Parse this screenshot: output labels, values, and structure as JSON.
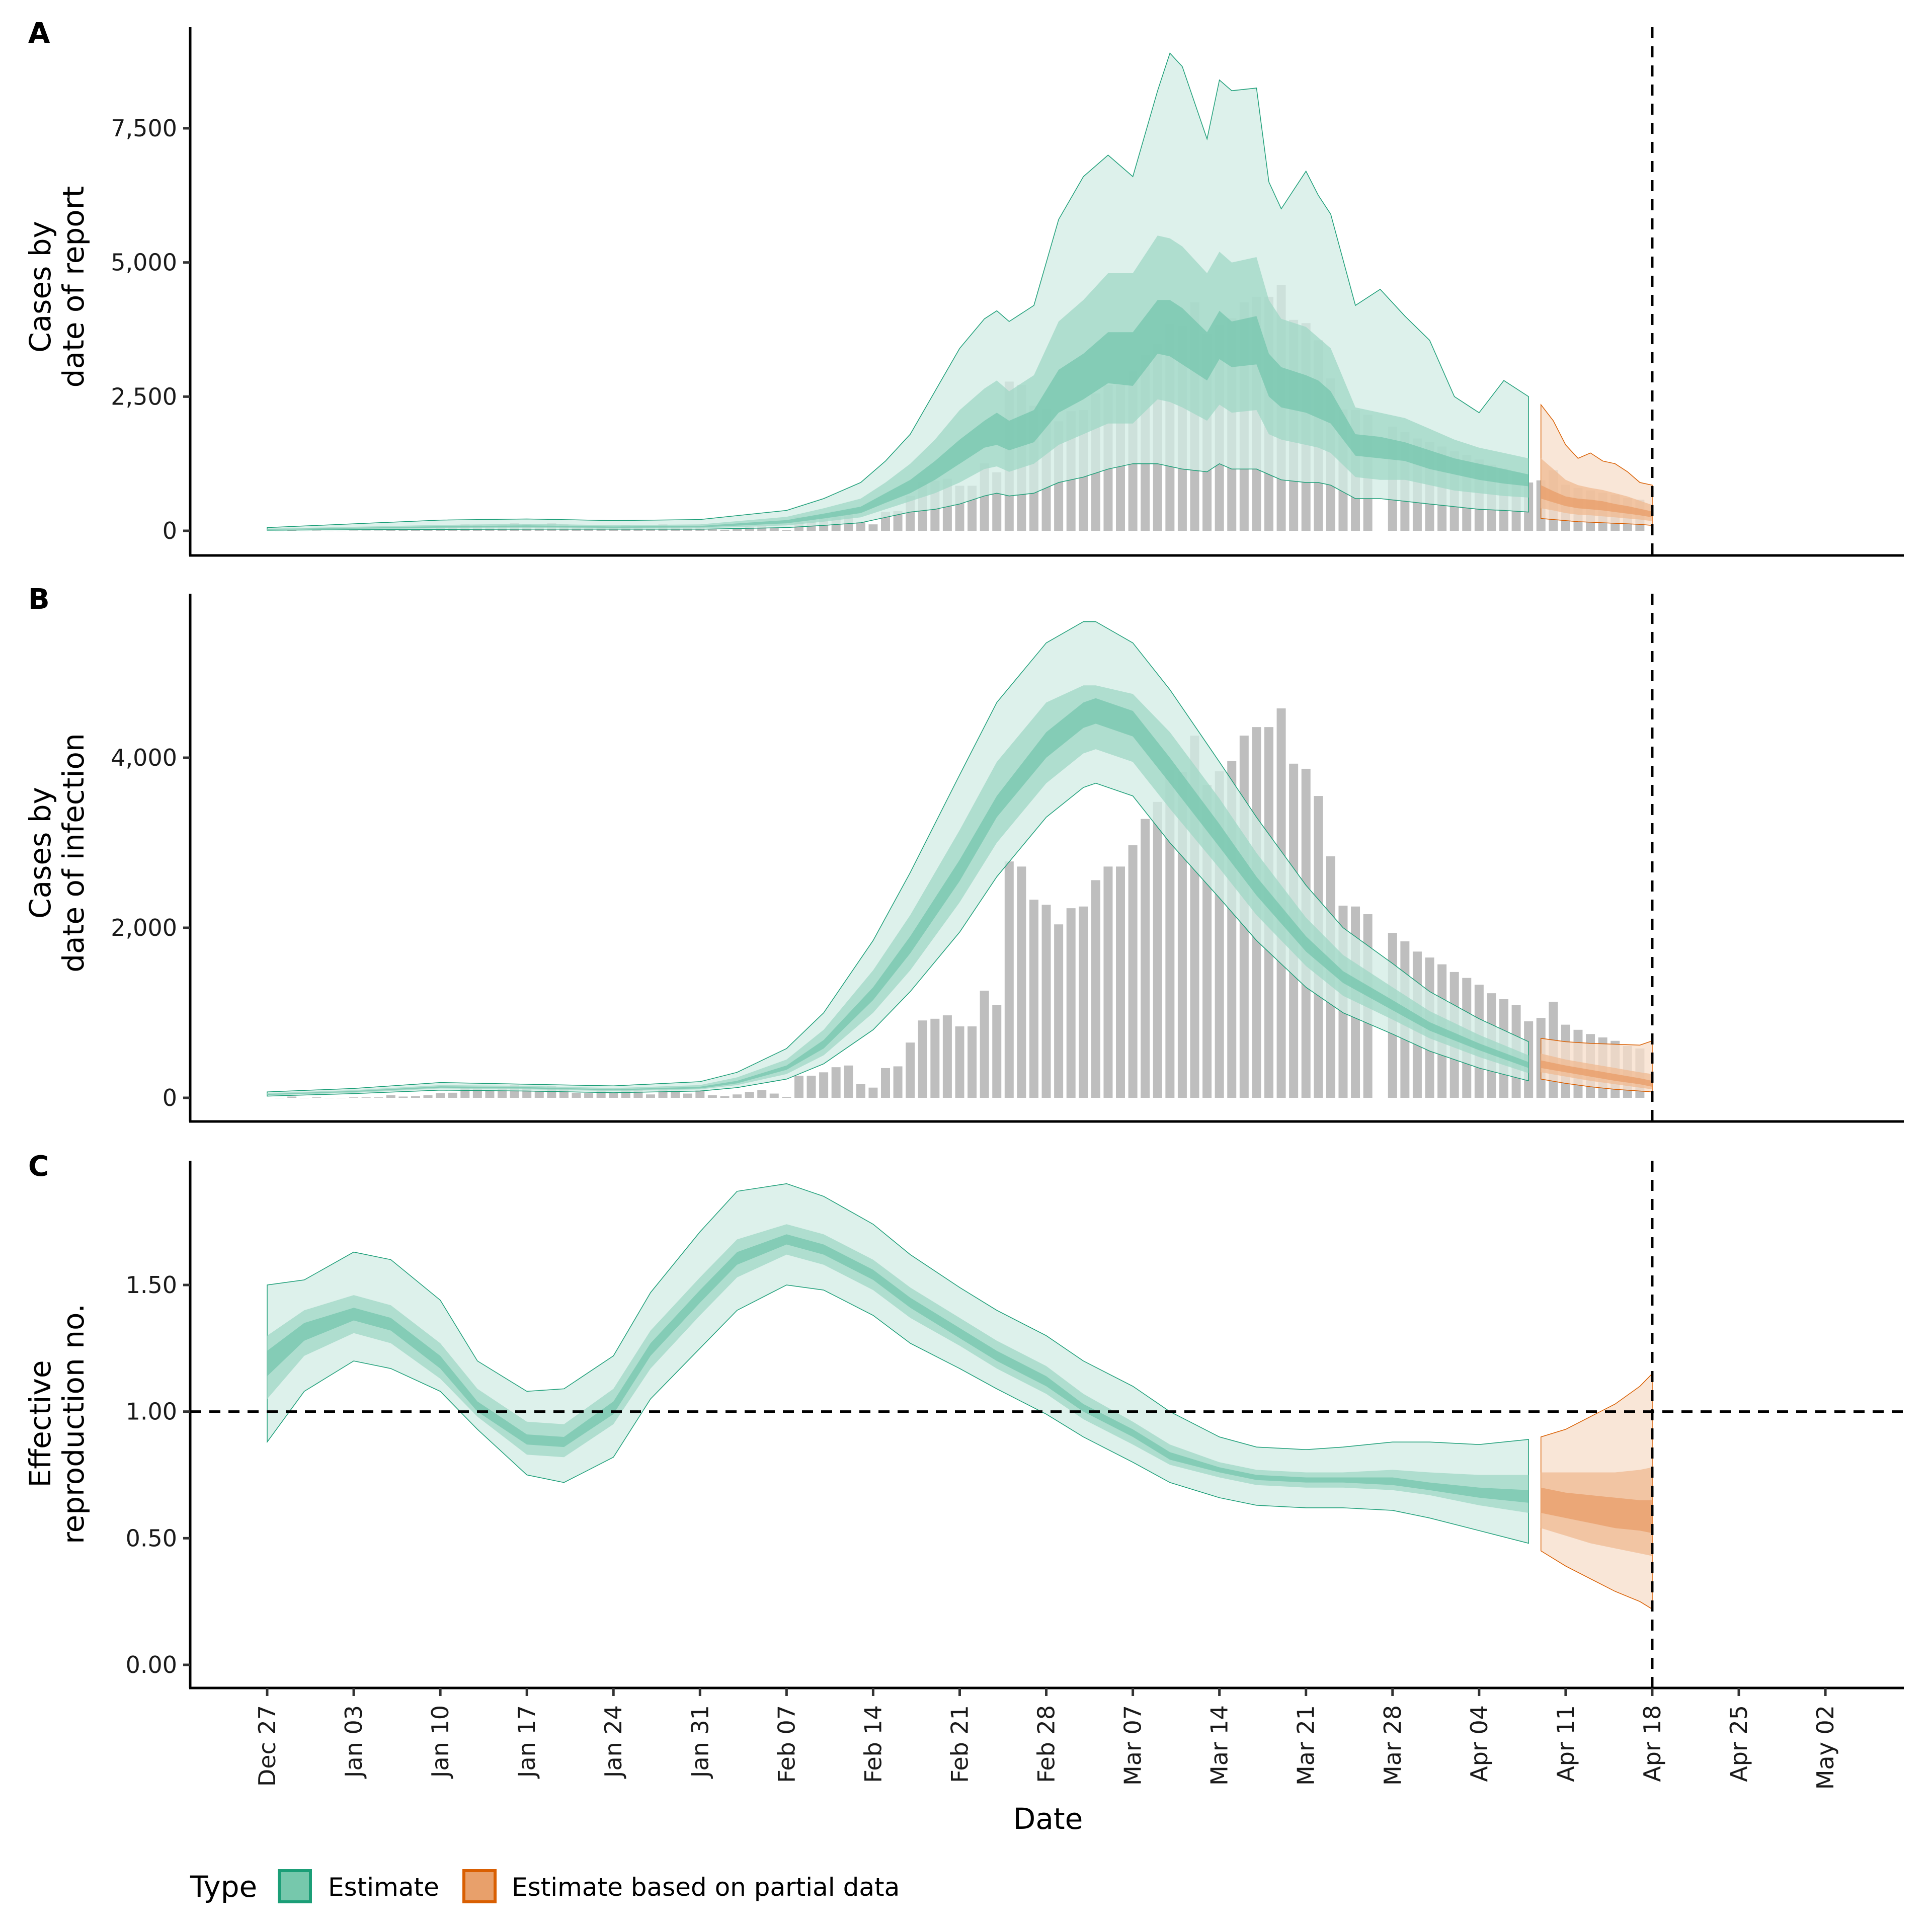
{
  "chart_data": {
    "type": "bar+area",
    "xlabel": "Date",
    "x_ticks": [
      "Dec 27",
      "Jan 03",
      "Jan 10",
      "Jan 17",
      "Jan 24",
      "Jan 31",
      "Feb 07",
      "Feb 14",
      "Feb 21",
      "Feb 28",
      "Mar 07",
      "Mar 14",
      "Mar 21",
      "Mar 28",
      "Apr 04",
      "Apr 11",
      "Apr 18",
      "Apr 25",
      "May 02"
    ],
    "x_start_date": "Dec 27",
    "x_range_days": [
      -11,
      128
    ],
    "vline_day": 112,
    "vline_label": "Apr 18",
    "partial_start_day": 103,
    "legend": {
      "title": "Type",
      "position": "bottom-left",
      "items": [
        {
          "label": "Estimate",
          "fill": "#76c8ac",
          "border": "#1b9e77"
        },
        {
          "label": "Estimate based on partial data",
          "fill": "#e8a06b",
          "border": "#d95f02"
        }
      ]
    },
    "colors": {
      "bars": "#bebebe",
      "estimate_band_outer": "#d1ece4",
      "estimate_band_mid": "#9fd7c5",
      "estimate_band_inner": "#76c5ad",
      "estimate_line": "#1b9e77",
      "partial_band_outer": "#f7ddc9",
      "partial_band_mid": "#efb992",
      "partial_band_inner": "#e89c68",
      "partial_line": "#d95f02"
    },
    "observed_cases_day0": 1,
    "observed_cases": [
      0,
      15,
      0,
      5,
      0,
      0,
      5,
      5,
      5,
      30,
      15,
      20,
      30,
      55,
      60,
      120,
      110,
      95,
      110,
      150,
      130,
      80,
      140,
      120,
      60,
      55,
      85,
      60,
      110,
      90,
      40,
      120,
      85,
      50,
      90,
      30,
      20,
      40,
      70,
      90,
      50,
      10,
      260,
      260,
      300,
      360,
      380,
      160,
      120,
      350,
      370,
      650,
      910,
      930,
      970,
      840,
      840,
      1260,
      1090,
      2780,
      2720,
      2330,
      2270,
      2040,
      2230,
      2250,
      2560,
      2720,
      2720,
      2970,
      3280,
      3480,
      3860,
      3830,
      4260,
      3680,
      3840,
      3960,
      4260,
      4360,
      4360,
      4580,
      3930,
      3870,
      3550,
      2840,
      2260,
      2250,
      2160,
      null,
      1940,
      1840,
      1720,
      1650,
      1570,
      1480,
      1410,
      1330,
      1230,
      1160,
      1090,
      900,
      940,
      1130,
      860,
      800,
      750,
      710,
      670,
      610,
      580
    ],
    "panels": [
      {
        "id": "A",
        "ylabel": [
          "Cases by",
          "date of report"
        ],
        "y_ticks": [
          0,
          2500,
          5000,
          7500
        ],
        "y_tick_labels": [
          "0",
          "2,500",
          "5,000",
          "7,500"
        ],
        "ylim": [
          -450,
          9350
        ],
        "estimate": {
          "days": [
            0,
            7,
            14,
            21,
            28,
            35,
            42,
            45,
            48,
            50,
            52,
            54,
            56,
            58,
            59,
            60,
            62,
            64,
            66,
            68,
            70,
            72,
            73,
            74,
            76,
            77,
            78,
            80,
            81,
            82,
            84,
            85,
            86,
            88,
            90,
            92,
            94,
            96,
            98,
            100,
            102
          ],
          "lo90": [
            10,
            20,
            25,
            30,
            30,
            30,
            60,
            100,
            150,
            250,
            350,
            400,
            500,
            650,
            700,
            650,
            700,
            900,
            1000,
            1150,
            1250,
            1250,
            1200,
            1150,
            1100,
            1250,
            1150,
            1150,
            1050,
            950,
            900,
            900,
            850,
            600,
            600,
            550,
            500,
            450,
            400,
            380,
            350
          ],
          "lo50": [
            15,
            30,
            45,
            50,
            40,
            45,
            100,
            170,
            250,
            400,
            550,
            700,
            900,
            1150,
            1200,
            1100,
            1250,
            1600,
            1800,
            2000,
            2000,
            2450,
            2400,
            2300,
            2050,
            2350,
            2200,
            2250,
            1800,
            1700,
            1600,
            1550,
            1450,
            1000,
            950,
            950,
            850,
            750,
            700,
            650,
            620
          ],
          "lo20": [
            20,
            40,
            60,
            70,
            55,
            65,
            140,
            230,
            330,
            520,
            700,
            950,
            1250,
            1550,
            1600,
            1500,
            1650,
            2200,
            2450,
            2750,
            2700,
            3300,
            3250,
            3100,
            2800,
            3200,
            3050,
            3100,
            2500,
            2300,
            2200,
            2100,
            2000,
            1400,
            1350,
            1300,
            1150,
            1050,
            950,
            880,
            830
          ],
          "hi20": [
            30,
            55,
            85,
            100,
            80,
            90,
            200,
            320,
            450,
            700,
            950,
            1300,
            1700,
            2050,
            2200,
            2050,
            2250,
            3000,
            3300,
            3700,
            3700,
            4300,
            4300,
            4150,
            3700,
            4100,
            3900,
            4000,
            3300,
            3050,
            2900,
            2800,
            2600,
            1800,
            1750,
            1650,
            1500,
            1350,
            1250,
            1150,
            1050
          ],
          "hi50": [
            40,
            75,
            110,
            130,
            105,
            120,
            260,
            420,
            600,
            900,
            1250,
            1700,
            2250,
            2650,
            2800,
            2600,
            2900,
            3900,
            4300,
            4800,
            4800,
            5500,
            5450,
            5300,
            4800,
            5200,
            5000,
            5100,
            4300,
            3950,
            3800,
            3600,
            3400,
            2300,
            2200,
            2100,
            1900,
            1700,
            1550,
            1450,
            1350
          ],
          "hi90": [
            60,
            130,
            200,
            220,
            190,
            210,
            380,
            600,
            900,
            1300,
            1800,
            2600,
            3400,
            3950,
            4100,
            3900,
            4200,
            5800,
            6600,
            7000,
            6600,
            8200,
            8900,
            8650,
            7300,
            8400,
            8200,
            8250,
            6500,
            6000,
            6700,
            6250,
            5900,
            4200,
            4500,
            4000,
            3550,
            2500,
            2200,
            2800,
            2500
          ]
        },
        "partial": {
          "days": [
            103,
            104,
            105,
            106,
            107,
            108,
            109,
            110,
            111,
            112
          ],
          "lo90": [
            230,
            210,
            190,
            170,
            160,
            150,
            140,
            130,
            120,
            100
          ],
          "lo50": [
            420,
            380,
            330,
            300,
            290,
            270,
            250,
            230,
            210,
            180
          ],
          "lo20": [
            600,
            530,
            460,
            420,
            400,
            380,
            350,
            320,
            290,
            250
          ],
          "hi20": [
            850,
            740,
            640,
            600,
            580,
            550,
            500,
            460,
            410,
            360
          ],
          "hi50": [
            1350,
            1150,
            950,
            850,
            800,
            760,
            700,
            640,
            560,
            480
          ],
          "hi90": [
            2350,
            2050,
            1600,
            1350,
            1450,
            1300,
            1250,
            1100,
            900,
            850
          ]
        }
      },
      {
        "id": "B",
        "ylabel": [
          "Cases by",
          "date of infection"
        ],
        "y_ticks": [
          0,
          2000,
          4000
        ],
        "y_tick_labels": [
          "0",
          "2,000",
          "4,000"
        ],
        "ylim": [
          -280,
          5850
        ],
        "estimate": {
          "days": [
            0,
            7,
            14,
            21,
            28,
            35,
            38,
            42,
            45,
            49,
            52,
            56,
            59,
            63,
            66,
            67,
            70,
            73,
            77,
            80,
            84,
            87,
            91,
            94,
            98,
            102
          ],
          "lo90": [
            20,
            50,
            90,
            80,
            60,
            80,
            120,
            220,
            400,
            800,
            1250,
            1950,
            2600,
            3300,
            3650,
            3700,
            3550,
            3000,
            2350,
            1850,
            1300,
            1000,
            750,
            550,
            350,
            200
          ],
          "lo50": [
            30,
            60,
            110,
            100,
            80,
            100,
            150,
            280,
            500,
            1000,
            1500,
            2300,
            3000,
            3700,
            4050,
            4100,
            3950,
            3400,
            2700,
            2150,
            1550,
            1200,
            920,
            700,
            480,
            290
          ],
          "lo20": [
            35,
            70,
            120,
            110,
            90,
            110,
            170,
            330,
            580,
            1150,
            1700,
            2550,
            3300,
            4000,
            4350,
            4400,
            4250,
            3700,
            2950,
            2380,
            1720,
            1350,
            1030,
            790,
            560,
            350
          ],
          "hi20": [
            45,
            80,
            135,
            125,
            100,
            130,
            200,
            380,
            680,
            1300,
            1900,
            2800,
            3550,
            4300,
            4650,
            4700,
            4550,
            4000,
            3220,
            2600,
            1900,
            1490,
            1150,
            890,
            640,
            420
          ],
          "hi50": [
            55,
            90,
            150,
            140,
            115,
            150,
            240,
            450,
            800,
            1500,
            2150,
            3150,
            3950,
            4650,
            4850,
            4850,
            4750,
            4300,
            3520,
            2880,
            2120,
            1680,
            1300,
            1020,
            740,
            500
          ],
          "hi90": [
            70,
            110,
            180,
            160,
            140,
            190,
            300,
            580,
            1000,
            1850,
            2650,
            3800,
            4650,
            5350,
            5600,
            5600,
            5350,
            4800,
            3950,
            3300,
            2500,
            2000,
            1580,
            1250,
            930,
            660
          ]
        },
        "partial": {
          "days": [
            103,
            105,
            107,
            109,
            111,
            112
          ],
          "lo90": [
            220,
            170,
            130,
            100,
            80,
            70
          ],
          "lo50": [
            300,
            250,
            200,
            160,
            120,
            100
          ],
          "lo20": [
            350,
            300,
            250,
            200,
            160,
            130
          ],
          "hi20": [
            440,
            380,
            330,
            280,
            230,
            200
          ],
          "hi50": [
            520,
            450,
            400,
            350,
            300,
            280
          ],
          "hi90": [
            700,
            660,
            640,
            630,
            620,
            670
          ]
        }
      },
      {
        "id": "C",
        "ylabel": [
          "Effective",
          "reproduction no."
        ],
        "y_ticks": [
          0,
          0.5,
          1.0,
          1.5
        ],
        "y_tick_labels": [
          "0.00",
          "0.50",
          "1.00",
          "1.50"
        ],
        "ylim": [
          -0.1,
          1.98
        ],
        "hline": 1.0,
        "estimate": {
          "days": [
            0,
            3,
            7,
            10,
            14,
            17,
            21,
            24,
            28,
            31,
            35,
            38,
            42,
            45,
            49,
            52,
            56,
            59,
            63,
            66,
            70,
            73,
            77,
            80,
            84,
            87,
            91,
            94,
            98,
            102
          ],
          "lo90": [
            0.88,
            1.08,
            1.2,
            1.17,
            1.08,
            0.93,
            0.75,
            0.72,
            0.82,
            1.05,
            1.25,
            1.4,
            1.5,
            1.48,
            1.38,
            1.27,
            1.17,
            1.09,
            0.99,
            0.9,
            0.8,
            0.72,
            0.66,
            0.63,
            0.62,
            0.62,
            0.61,
            0.58,
            0.53,
            0.48
          ],
          "lo50": [
            1.05,
            1.22,
            1.31,
            1.27,
            1.13,
            0.98,
            0.83,
            0.82,
            0.95,
            1.17,
            1.38,
            1.53,
            1.62,
            1.58,
            1.48,
            1.37,
            1.26,
            1.17,
            1.07,
            0.97,
            0.87,
            0.79,
            0.74,
            0.71,
            0.7,
            0.7,
            0.69,
            0.67,
            0.63,
            0.6
          ],
          "lo20": [
            1.14,
            1.28,
            1.36,
            1.32,
            1.17,
            1.0,
            0.87,
            0.86,
            0.99,
            1.22,
            1.43,
            1.58,
            1.66,
            1.62,
            1.52,
            1.41,
            1.29,
            1.2,
            1.1,
            1.0,
            0.9,
            0.81,
            0.76,
            0.73,
            0.72,
            0.72,
            0.71,
            0.69,
            0.66,
            0.64
          ],
          "hi20": [
            1.24,
            1.35,
            1.41,
            1.37,
            1.22,
            1.04,
            0.91,
            0.9,
            1.04,
            1.27,
            1.48,
            1.63,
            1.7,
            1.66,
            1.56,
            1.45,
            1.33,
            1.24,
            1.14,
            1.03,
            0.93,
            0.84,
            0.78,
            0.75,
            0.74,
            0.74,
            0.74,
            0.72,
            0.7,
            0.69
          ],
          "hi50": [
            1.3,
            1.4,
            1.46,
            1.42,
            1.27,
            1.09,
            0.96,
            0.95,
            1.09,
            1.32,
            1.53,
            1.68,
            1.74,
            1.7,
            1.6,
            1.49,
            1.37,
            1.28,
            1.18,
            1.07,
            0.96,
            0.87,
            0.8,
            0.77,
            0.76,
            0.76,
            0.77,
            0.76,
            0.75,
            0.75
          ],
          "hi90": [
            1.5,
            1.52,
            1.63,
            1.6,
            1.44,
            1.2,
            1.08,
            1.09,
            1.22,
            1.47,
            1.71,
            1.87,
            1.9,
            1.85,
            1.74,
            1.62,
            1.49,
            1.4,
            1.3,
            1.2,
            1.1,
            1.0,
            0.9,
            0.86,
            0.85,
            0.86,
            0.88,
            0.88,
            0.87,
            0.89
          ]
        },
        "partial": {
          "days": [
            103,
            105,
            107,
            109,
            111,
            112
          ],
          "lo90": [
            0.45,
            0.39,
            0.34,
            0.29,
            0.25,
            0.22
          ],
          "lo50": [
            0.54,
            0.51,
            0.48,
            0.46,
            0.44,
            0.43
          ],
          "lo20": [
            0.6,
            0.58,
            0.56,
            0.54,
            0.53,
            0.52
          ],
          "hi20": [
            0.7,
            0.68,
            0.67,
            0.66,
            0.65,
            0.65
          ],
          "hi50": [
            0.76,
            0.76,
            0.76,
            0.76,
            0.77,
            0.78
          ],
          "hi90": [
            0.9,
            0.93,
            0.98,
            1.03,
            1.1,
            1.15
          ]
        }
      }
    ]
  }
}
